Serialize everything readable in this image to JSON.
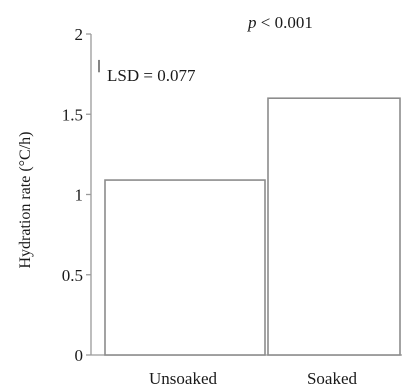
{
  "chart_data": {
    "type": "bar",
    "categories": [
      "Unsoaked",
      "Soaked"
    ],
    "values": [
      1.09,
      1.6
    ],
    "ylabel": "Hydration rate (°C/h)",
    "xlabel": "",
    "ylim": [
      0,
      2
    ],
    "yticks": [
      "0",
      "0.5",
      "1",
      "1.5",
      "2"
    ],
    "grid": false,
    "annotations": {
      "p_symbol": "p",
      "p_rest": " < 0.001",
      "lsd_text": "LSD = 0.077",
      "lsd_value": 0.077
    }
  },
  "colors": {
    "bar_fill": "#ffffff",
    "bar_stroke": "#8c8c8c",
    "axis": "#9a9a9a"
  }
}
